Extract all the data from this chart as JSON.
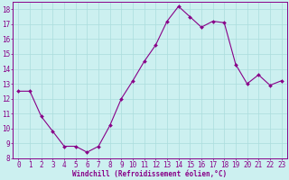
{
  "x": [
    0,
    1,
    2,
    3,
    4,
    5,
    6,
    7,
    8,
    9,
    10,
    11,
    12,
    13,
    14,
    15,
    16,
    17,
    18,
    19,
    20,
    21,
    22,
    23
  ],
  "y": [
    12.5,
    12.5,
    10.8,
    9.8,
    8.8,
    8.8,
    8.4,
    8.8,
    10.2,
    12.0,
    13.2,
    14.5,
    15.6,
    17.2,
    18.2,
    17.5,
    16.8,
    17.2,
    17.1,
    14.3,
    13.0,
    13.6,
    12.9,
    13.2
  ],
  "line_color": "#880088",
  "marker": "D",
  "marker_size": 2.0,
  "bg_color": "#ccf0f0",
  "grid_color": "#aadddd",
  "xlabel": "Windchill (Refroidissement éolien,°C)",
  "xlabel_color": "#880088",
  "tick_color": "#880088",
  "spine_color": "#880088",
  "ylim": [
    8,
    18.5
  ],
  "xlim": [
    -0.5,
    23.5
  ],
  "yticks": [
    8,
    9,
    10,
    11,
    12,
    13,
    14,
    15,
    16,
    17,
    18
  ],
  "xticks": [
    0,
    1,
    2,
    3,
    4,
    5,
    6,
    7,
    8,
    9,
    10,
    11,
    12,
    13,
    14,
    15,
    16,
    17,
    18,
    19,
    20,
    21,
    22,
    23
  ],
  "xlabel_fontsize": 5.5,
  "tick_fontsize": 5.5
}
